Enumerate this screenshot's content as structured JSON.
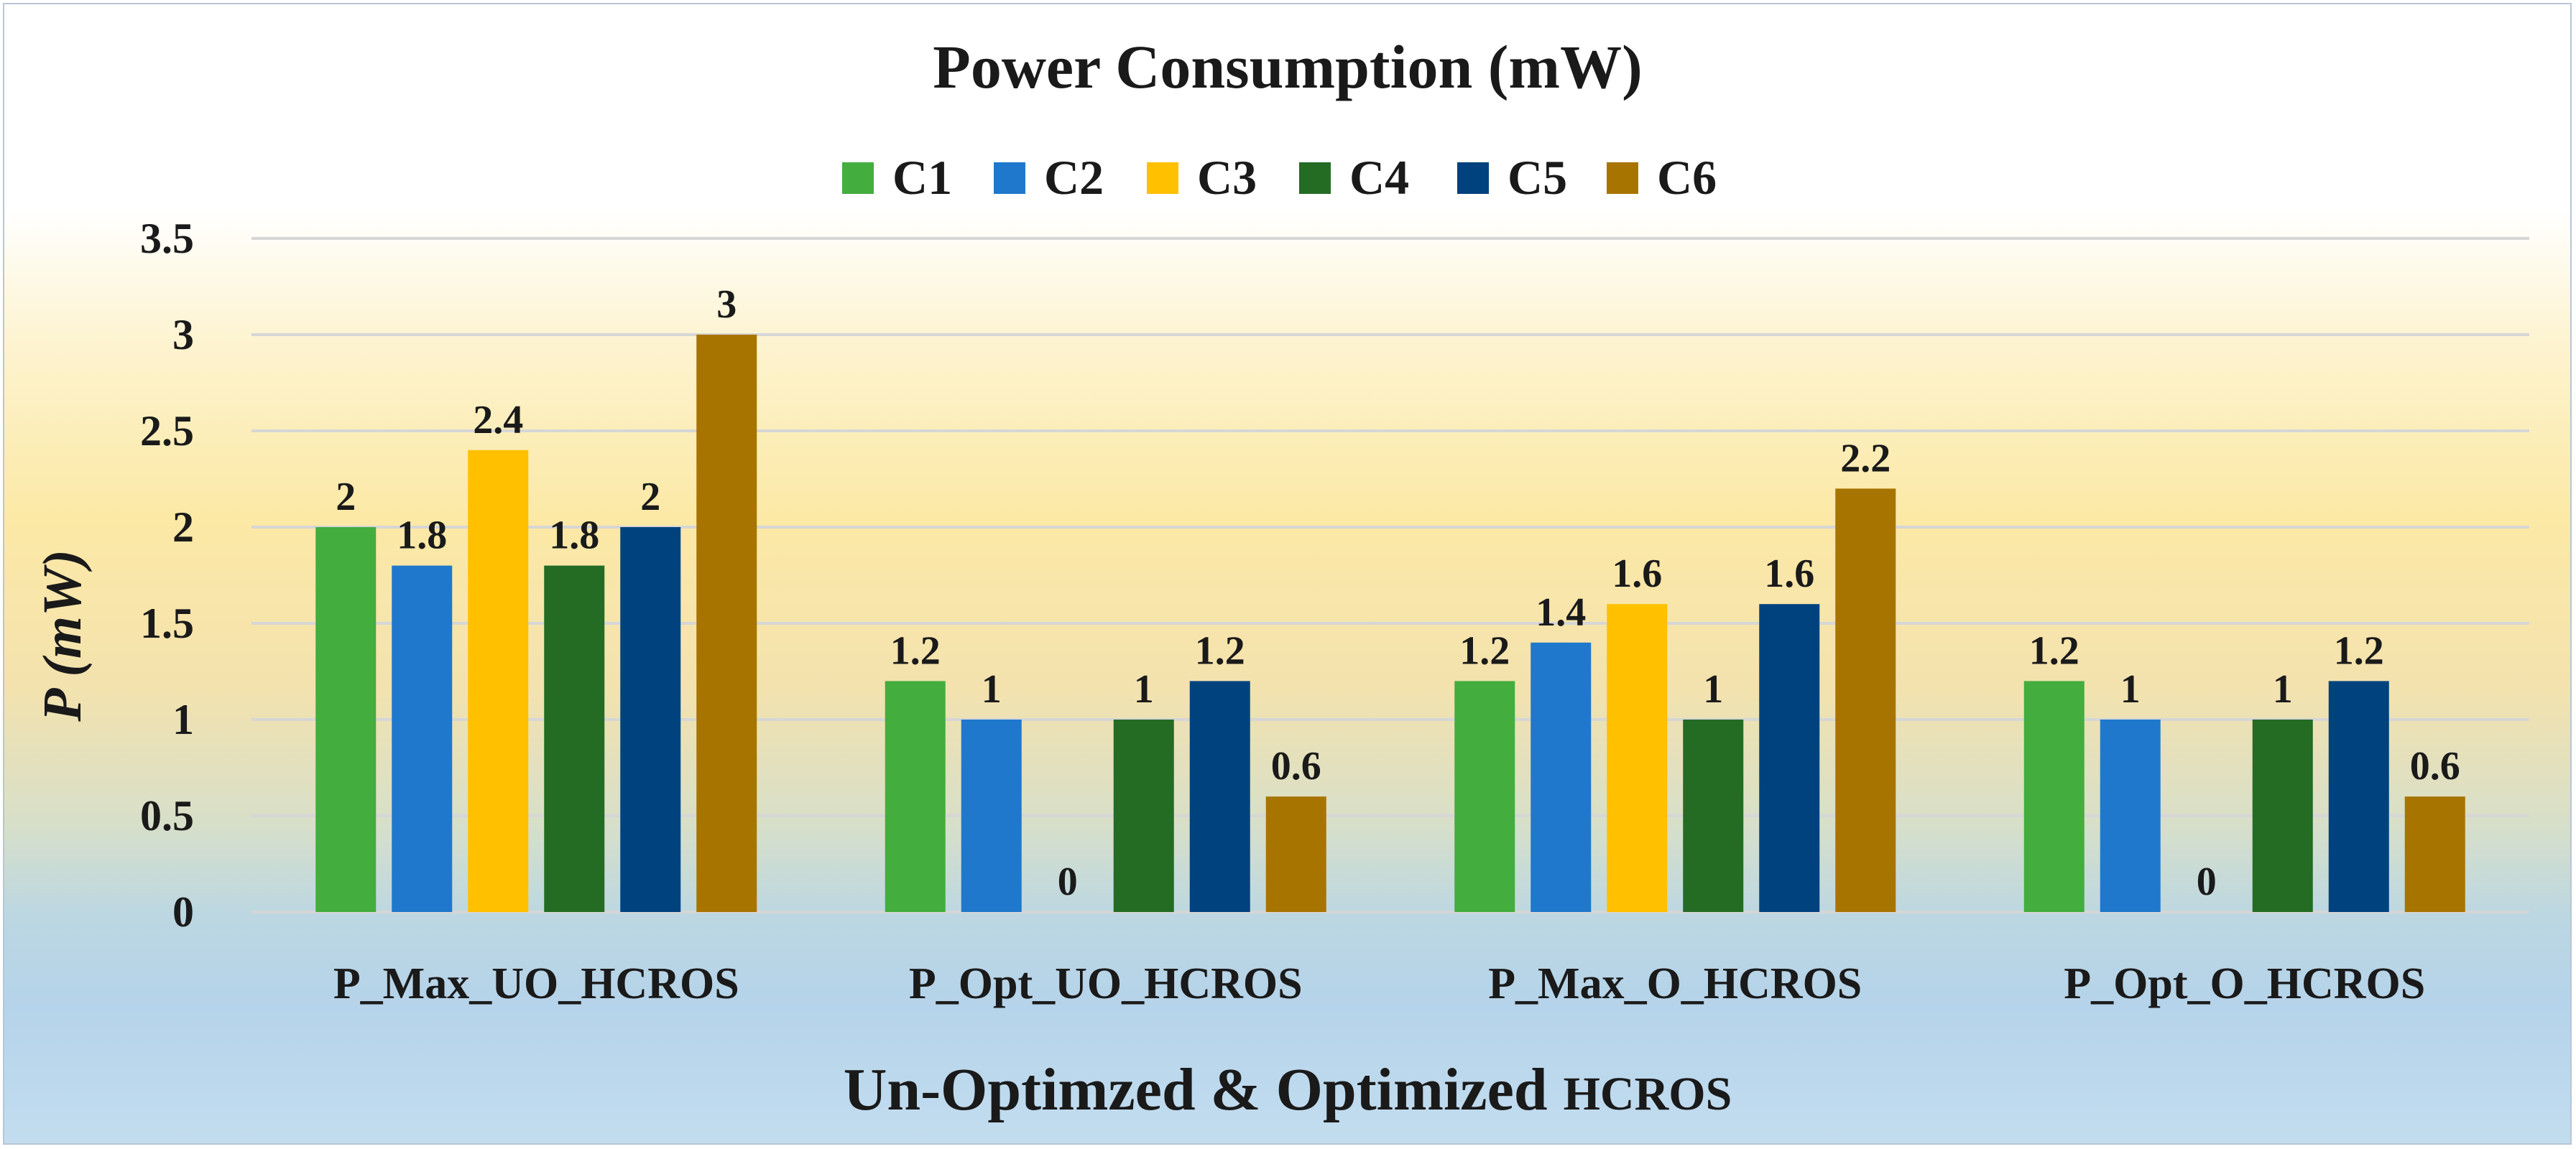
{
  "chart_data": {
    "type": "bar",
    "title": "Power Consumption (mW)",
    "xlabel_main": "Un-Optimzed & Optimized",
    "xlabel_suffix": "HCROS",
    "ylabel_var": "P",
    "ylabel_unit": "(mW)",
    "ylim": [
      0,
      3.5
    ],
    "yticks": [
      "0",
      "0.5",
      "1",
      "1.5",
      "2",
      "2.5",
      "3",
      "3.5"
    ],
    "grid": true,
    "legend_position": "top",
    "categories": [
      "P_Max_UO_HCROS",
      "P_Opt_UO_HCROS",
      "P_Max_O_HCROS",
      "P_Opt_O_HCROS"
    ],
    "series": [
      {
        "name": "C1",
        "color": "#43ad3e",
        "values": [
          2,
          1.2,
          1.2,
          1.2
        ],
        "labels": [
          "2",
          "1.2",
          "1.2",
          "1.2"
        ]
      },
      {
        "name": "C2",
        "color": "#1f78cc",
        "values": [
          1.8,
          1,
          1.4,
          1
        ],
        "labels": [
          "1.8",
          "1",
          "1.4",
          "1"
        ]
      },
      {
        "name": "C3",
        "color": "#ffc000",
        "values": [
          2.4,
          0,
          1.6,
          0
        ],
        "labels": [
          "2.4",
          "0",
          "1.6",
          "0"
        ]
      },
      {
        "name": "C4",
        "color": "#246b24",
        "values": [
          1.8,
          1,
          1,
          1
        ],
        "labels": [
          "1.8",
          "1",
          "1",
          "1"
        ]
      },
      {
        "name": "C5",
        "color": "#00427e",
        "values": [
          2,
          1.2,
          1.6,
          1.2
        ],
        "labels": [
          "2",
          "1.2",
          "1.6",
          "1.2"
        ]
      },
      {
        "name": "C6",
        "color": "#a87400",
        "values": [
          3,
          0.6,
          2.2,
          0.6
        ],
        "labels": [
          "3",
          "0.6",
          "2.2",
          "0.6"
        ]
      }
    ]
  }
}
